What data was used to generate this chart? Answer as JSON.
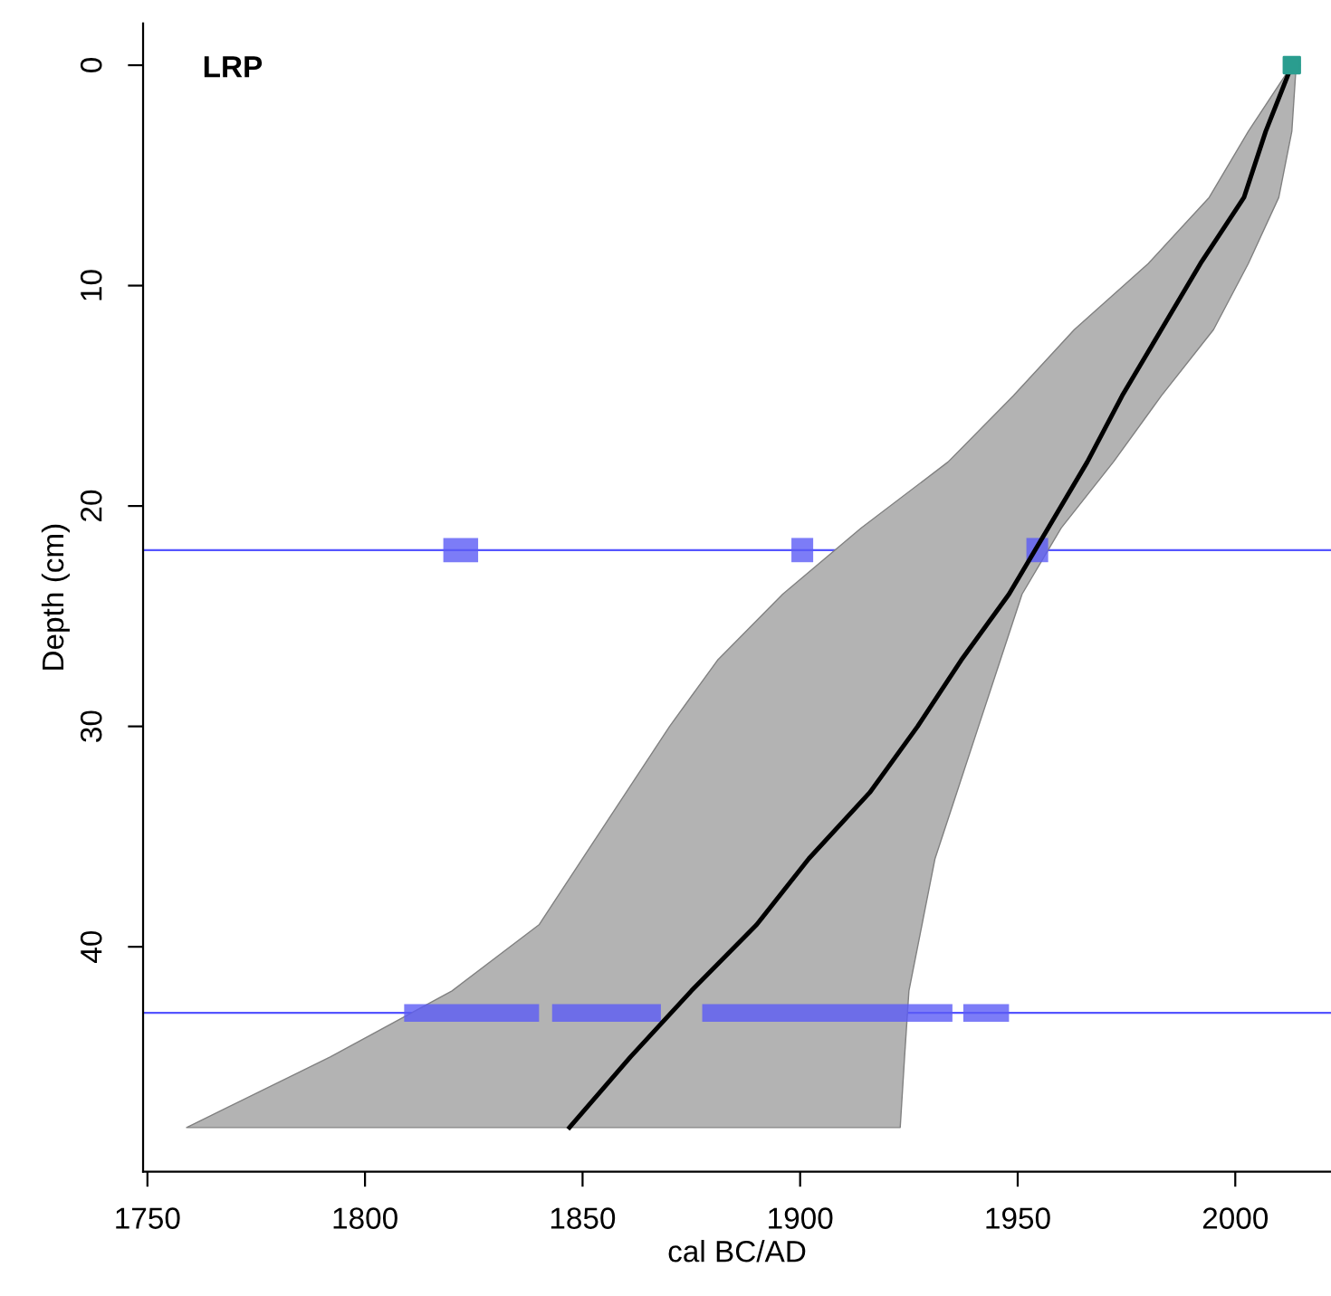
{
  "chart_data": {
    "type": "line",
    "orientation": "horizontal",
    "xlabel": "cal BC/AD",
    "ylabel": "Depth (cm)",
    "annotations": [
      "LRP"
    ],
    "xlim": [
      1749,
      2022
    ],
    "xticks": [
      1750,
      1800,
      1850,
      1900,
      1950,
      2000
    ],
    "ylim": [
      50.2,
      -1.9
    ],
    "yticks": [
      0,
      10,
      20,
      30,
      40
    ],
    "grid": false,
    "ref_lines": [
      {
        "axis": "y",
        "value": 22,
        "color": "#5555ff"
      },
      {
        "axis": "y",
        "value": 43,
        "color": "#5555ff"
      }
    ],
    "series": [
      {
        "color": "#000000",
        "x": [
          0,
          3,
          6,
          9,
          12,
          15,
          18,
          21,
          24,
          27,
          30,
          33,
          36,
          39,
          42,
          45,
          48.2
        ],
        "values": [
          2013,
          2007,
          2002,
          1992,
          1983,
          1974,
          1966,
          1957,
          1948,
          1937,
          1927,
          1916,
          1902,
          1890,
          1875,
          1861,
          1847
        ],
        "lower": [
          2013,
          2003,
          1994,
          1980,
          1963,
          1949,
          1934,
          1914,
          1896,
          1881,
          1870,
          1860,
          1850,
          1840,
          1820,
          1792,
          1759
        ],
        "upper": [
          2014,
          2013,
          2010,
          2003,
          1995,
          1983,
          1972,
          1960,
          1951,
          1946,
          1941,
          1936,
          1931,
          1928,
          1925,
          1924,
          1923
        ]
      },
      {
        "type": "bar",
        "color": "#5b5bf5",
        "x": [
          22
        ],
        "base": [
          1818
        ],
        "values": [
          8
        ]
      },
      {
        "type": "bar",
        "color": "#5b5bf5",
        "x": [
          22
        ],
        "base": [
          1898
        ],
        "values": [
          5
        ]
      },
      {
        "type": "bar",
        "color": "#5b5bf5",
        "x": [
          22
        ],
        "base": [
          1952
        ],
        "values": [
          5
        ]
      },
      {
        "type": "bar",
        "color": "#5b5bf5",
        "x": [
          43
        ],
        "base": [
          1809
        ],
        "values": [
          31
        ]
      },
      {
        "type": "bar",
        "color": "#5b5bf5",
        "x": [
          43
        ],
        "base": [
          1843
        ],
        "values": [
          25
        ]
      },
      {
        "type": "bar",
        "color": "#5b5bf5",
        "x": [
          43
        ],
        "base": [
          1877.5
        ],
        "values": [
          57.5
        ]
      },
      {
        "type": "bar",
        "color": "#5b5bf5",
        "x": [
          43
        ],
        "base": [
          1937.5
        ],
        "values": [
          10.5
        ]
      },
      {
        "type": "scatter",
        "color": "#2a9d8f",
        "marker": "square",
        "x": [
          0
        ],
        "values": [
          2013
        ],
        "errors": [
          2
        ]
      }
    ]
  }
}
